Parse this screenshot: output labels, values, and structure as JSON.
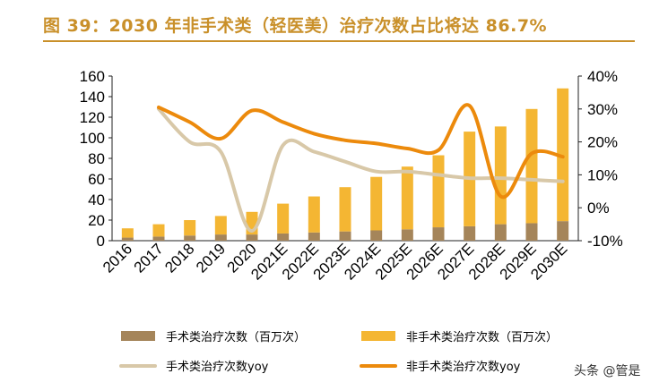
{
  "title": "图 39：2030 年非手术类（轻医美）治疗次数占比将达 86.7%",
  "watermark": "头条 @管是",
  "colors": {
    "surgical_bar": "#a5855a",
    "nonsurgical_bar": "#f4b633",
    "surgical_yoy_line": "#d8c8a8",
    "nonsurgical_yoy_line": "#ec8a0c",
    "title": "#c9902a"
  },
  "chart_data": {
    "type": "bar+line",
    "categories": [
      "2016",
      "2017",
      "2018",
      "2019",
      "2020",
      "2021E",
      "2022E",
      "2023E",
      "2024E",
      "2025E",
      "2026E",
      "2027E",
      "2028E",
      "2029E",
      "2030E"
    ],
    "stacked": true,
    "series": [
      {
        "name": "手术类治疗次数（百万次）",
        "kind": "bar",
        "axis": "left",
        "color": "#a5855a",
        "values": [
          3,
          4,
          5,
          6,
          6,
          7,
          8,
          9,
          10,
          11,
          13,
          14,
          16,
          17,
          19
        ]
      },
      {
        "name": "非手术类治疗次数（百万次）",
        "kind": "bar",
        "axis": "left",
        "color": "#f4b633",
        "values": [
          9,
          12,
          15,
          18,
          22,
          29,
          35,
          43,
          52,
          61,
          70,
          92,
          95,
          111,
          129
        ]
      },
      {
        "name": "手术类治疗次数yoy",
        "kind": "line",
        "axis": "right",
        "unit": "%",
        "color": "#d8c8a8",
        "values": [
          null,
          30,
          20,
          17,
          -7,
          19,
          17,
          14,
          11,
          11,
          10,
          9,
          9,
          8.5,
          8
        ]
      },
      {
        "name": "非手术类治疗次数yoy",
        "kind": "line",
        "axis": "right",
        "unit": "%",
        "color": "#ec8a0c",
        "values": [
          null,
          30.5,
          26,
          21,
          29.5,
          26,
          22.5,
          20.5,
          19.5,
          18,
          17.5,
          31,
          3.5,
          16.5,
          15.5
        ]
      }
    ],
    "y_left": {
      "ylim": [
        0,
        160
      ],
      "ticks": [
        "0",
        "20",
        "40",
        "60",
        "80",
        "100",
        "120",
        "140",
        "160"
      ]
    },
    "y_right": {
      "ylim": [
        -10,
        40
      ],
      "ticks": [
        "-10%",
        "0%",
        "10%",
        "20%",
        "30%",
        "40%"
      ]
    },
    "grid": false,
    "legend_position": "bottom"
  }
}
